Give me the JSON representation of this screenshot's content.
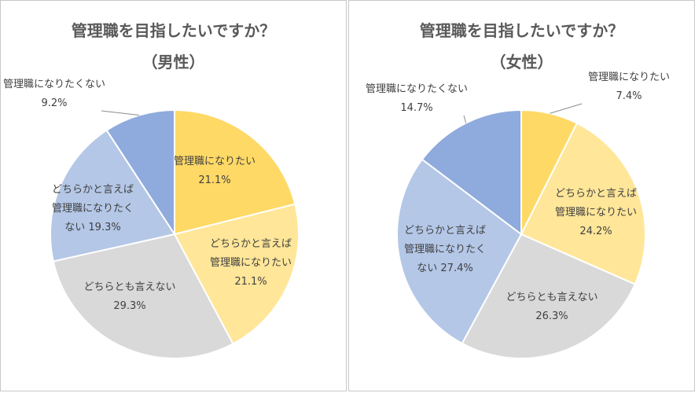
{
  "chart_data": [
    {
      "type": "pie",
      "title": "管理職を目指したいですか？",
      "subtitle": "（男性）",
      "slices": [
        {
          "lines": [
            "管理職になりたい",
            "21.1%"
          ],
          "value": 21.1,
          "color": "#FFD966"
        },
        {
          "lines": [
            "どちらかと言えば",
            "管理職になりたい",
            "21.1%"
          ],
          "value": 21.1,
          "color": "#FFE699"
        },
        {
          "lines": [
            "どちらとも言えない",
            "29.3%"
          ],
          "value": 29.3,
          "color": "#D9D9D9"
        },
        {
          "lines": [
            "どちらかと言えば",
            "管理職になりたく",
            "ない 19.3%"
          ],
          "value": 19.3,
          "color": "#B4C7E7"
        },
        {
          "lines": [
            "管理職になりたくない",
            "9.2%"
          ],
          "value": 9.2,
          "color": "#8FAADC"
        }
      ]
    },
    {
      "type": "pie",
      "title": "管理職を目指したいですか？",
      "subtitle": "（女性）",
      "slices": [
        {
          "lines": [
            "管理職になりたい",
            "7.4%"
          ],
          "value": 7.4,
          "color": "#FFD966"
        },
        {
          "lines": [
            "どちらかと言えば",
            "管理職になりたい",
            "24.2%"
          ],
          "value": 24.2,
          "color": "#FFE699"
        },
        {
          "lines": [
            "どちらとも言えない",
            "26.3%"
          ],
          "value": 26.3,
          "color": "#D9D9D9"
        },
        {
          "lines": [
            "どちらかと言えば",
            "管理職になりたく",
            "ない 27.4%"
          ],
          "value": 27.4,
          "color": "#B4C7E7"
        },
        {
          "lines": [
            "管理職になりたくない",
            "14.7%"
          ],
          "value": 14.7,
          "color": "#8FAADC"
        }
      ]
    }
  ]
}
